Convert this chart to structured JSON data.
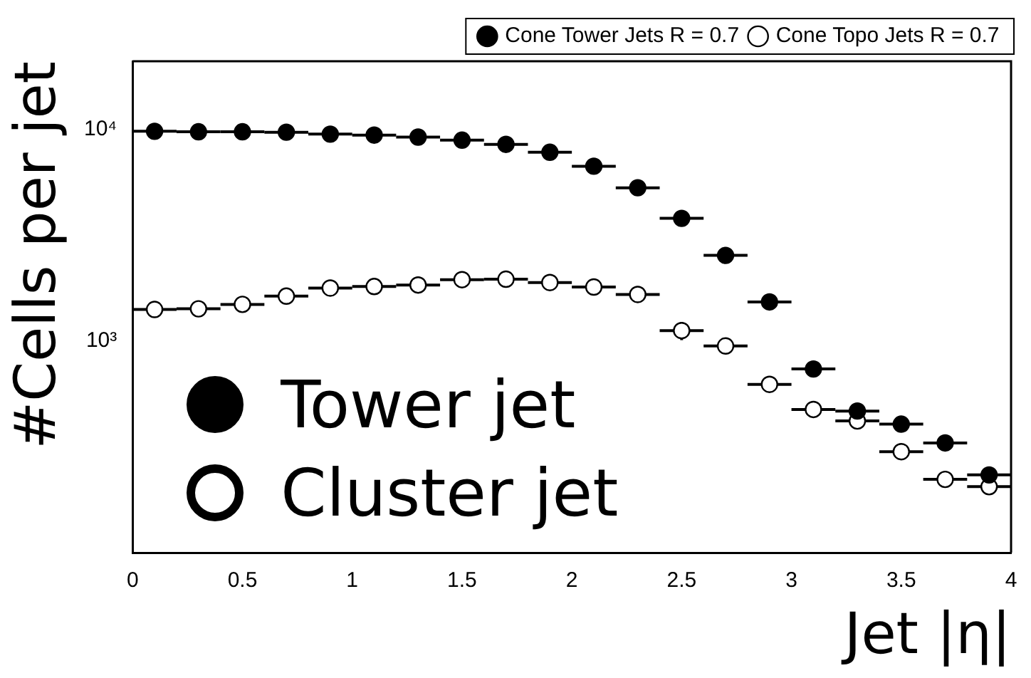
{
  "chart_data": {
    "type": "scatter",
    "xlabel": "Jet |η|",
    "ylabel": "#Cells per jet",
    "x": [
      0.1,
      0.3,
      0.5,
      0.7,
      0.9,
      1.1,
      1.3,
      1.5,
      1.7,
      1.9,
      2.1,
      2.3,
      2.5,
      2.7,
      2.9,
      3.1,
      3.3,
      3.5,
      3.7,
      3.9
    ],
    "series": [
      {
        "name": "Cone Tower Jets R = 0.7",
        "color": "#000000",
        "values": [
          9800,
          9750,
          9750,
          9700,
          9500,
          9400,
          9200,
          8900,
          8500,
          7800,
          6700,
          5300,
          3800,
          2540,
          1530,
          738,
          467,
          405,
          330,
          233
        ],
        "xerrors": [
          0.1,
          0.1,
          0.1,
          0.1,
          0.1,
          0.1,
          0.1,
          0.1,
          0.1,
          0.1,
          0.1,
          0.1,
          0.1,
          0.1,
          0.1,
          0.1,
          0.1,
          0.1,
          0.1,
          0.1
        ]
      },
      {
        "name": "Cone Topo Jets R = 0.7",
        "color": "#ffffff",
        "values": [
          1410,
          1420,
          1490,
          1630,
          1780,
          1810,
          1840,
          1950,
          1960,
          1890,
          1800,
          1660,
          1120,
          948,
          624,
          475,
          419,
          300,
          222,
          205
        ],
        "xerrors": [
          0.1,
          0.1,
          0.1,
          0.1,
          0.1,
          0.1,
          0.1,
          0.1,
          0.1,
          0.1,
          0.1,
          0.1,
          0.1,
          0.1,
          0.1,
          0.1,
          0.1,
          0.1,
          0.1,
          0.1
        ],
        "errors": [
          null,
          null,
          null,
          null,
          null,
          null,
          null,
          null,
          null,
          null,
          null,
          null,
          110,
          null,
          null,
          null,
          null,
          null,
          null,
          null
        ]
      }
    ],
    "annotations": [
      "Tower jet",
      "Cluster jet"
    ],
    "xlim": [
      0,
      4
    ],
    "xticks": [
      0,
      0.5,
      1,
      1.5,
      2,
      2.5,
      3,
      3.5,
      4
    ],
    "ylim": [
      100,
      21000
    ],
    "yticks": [
      {
        "value": 1000,
        "label": "10³"
      },
      {
        "value": 10000,
        "label": "10⁴"
      }
    ],
    "log": true,
    "grid": false,
    "legend": "top right",
    "marker": "circle"
  }
}
